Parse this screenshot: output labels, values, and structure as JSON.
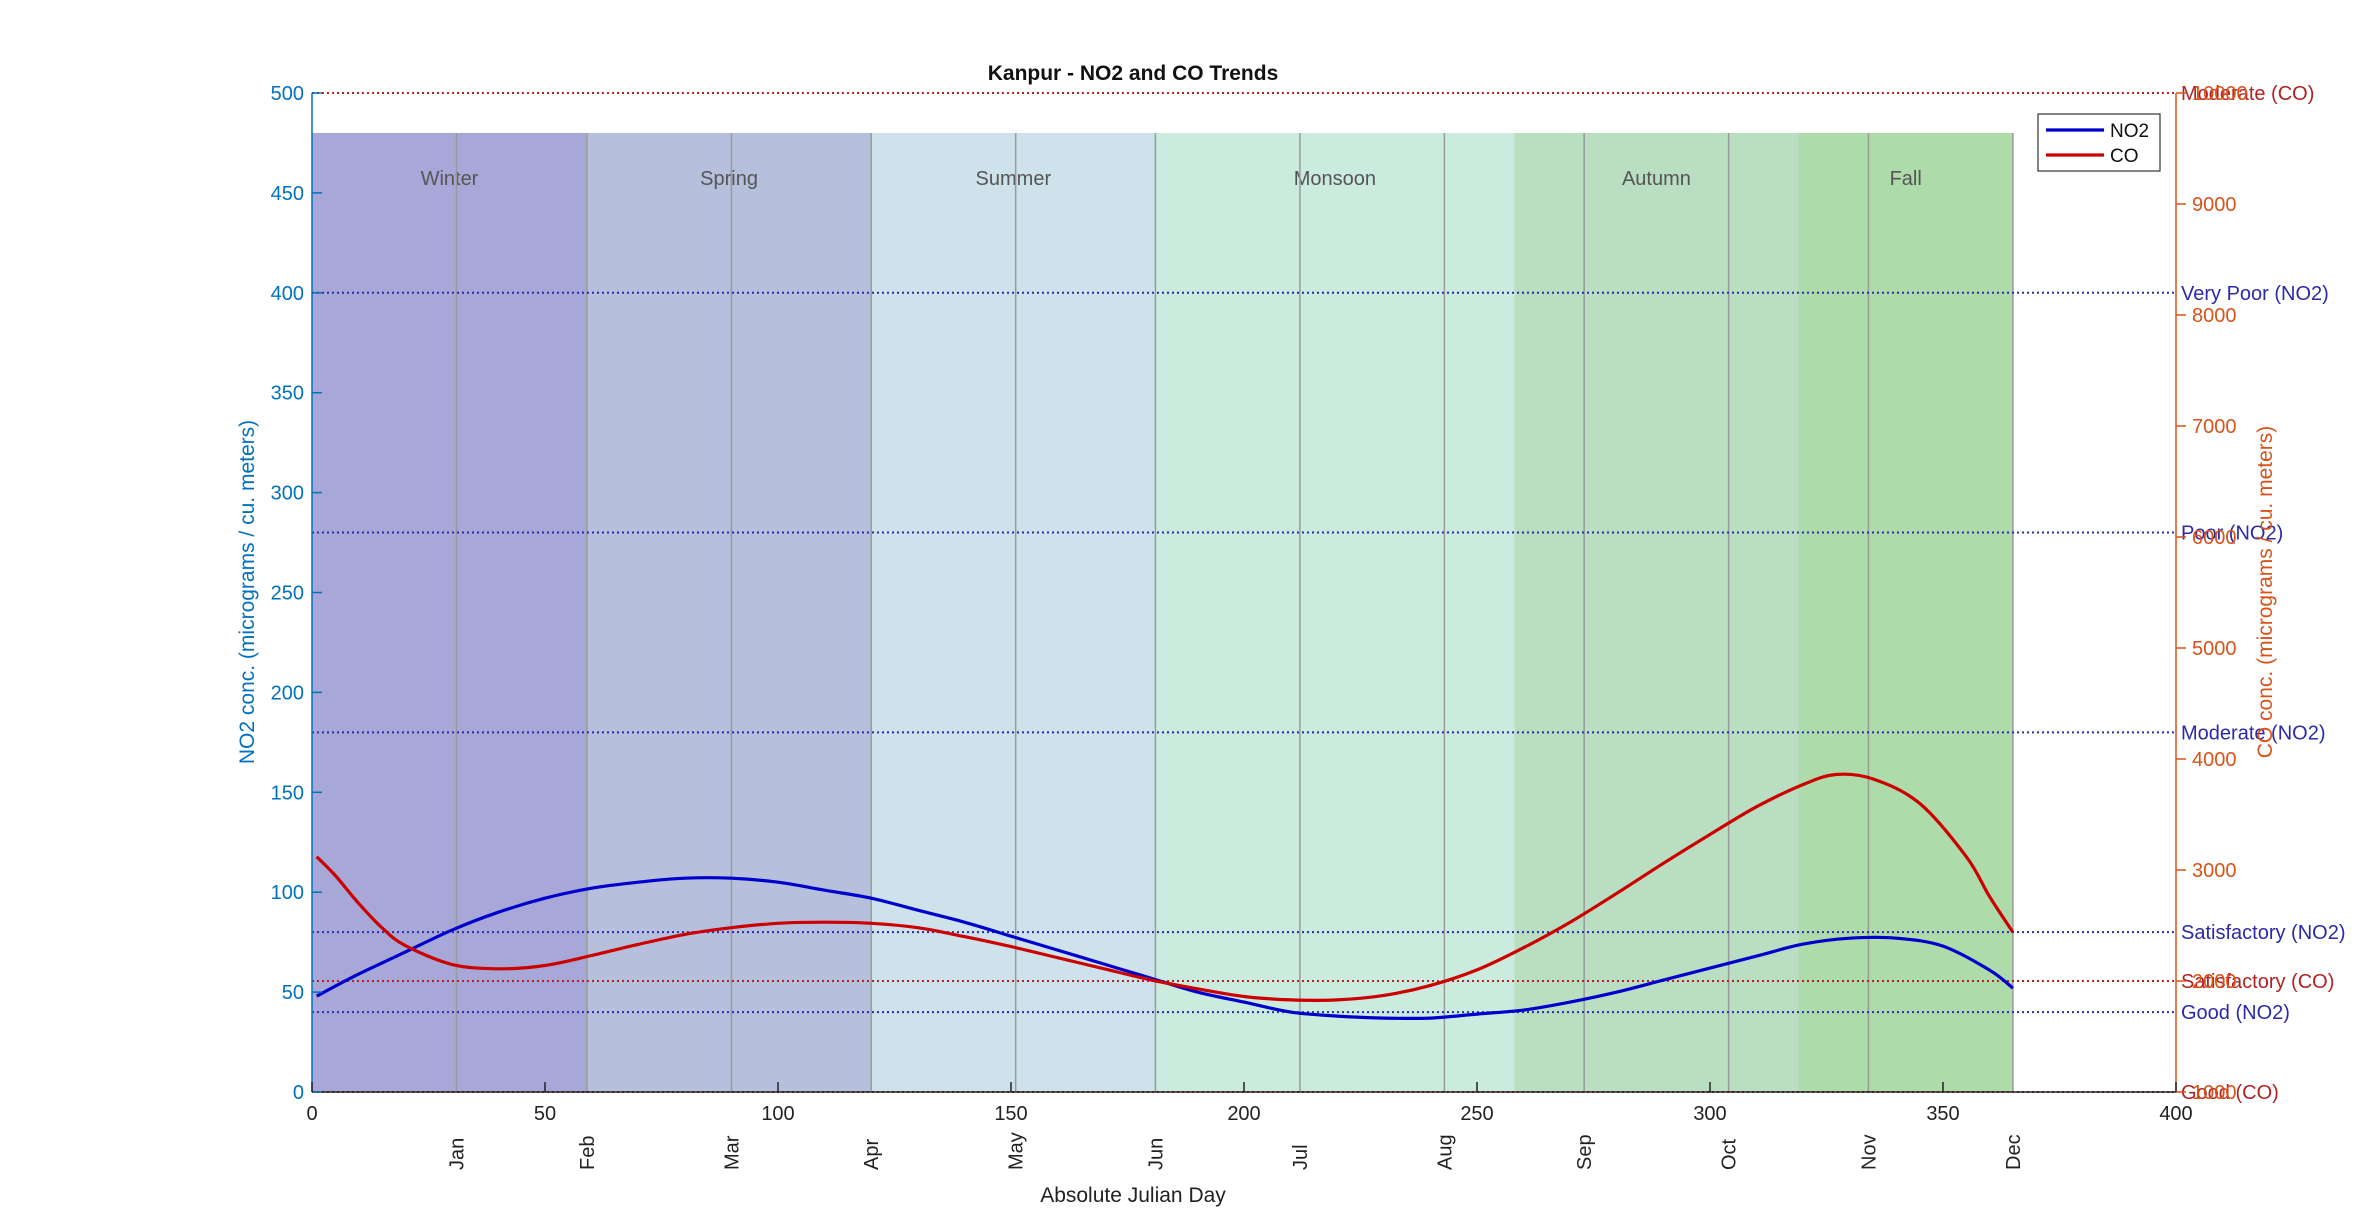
{
  "chart_data": {
    "type": "line",
    "title": "Kanpur - NO2 and CO Trends",
    "xlabel": "Absolute Julian Day",
    "ylabel_left": "NO2 conc. (micrograms / cu. meters)",
    "ylabel_right": "CO conc. (micrograms / cu. meters)",
    "xlim": [
      0,
      400
    ],
    "ylim_left": [
      0,
      500
    ],
    "ylim_right": [
      1000,
      10000
    ],
    "x_ticks": [
      0,
      50,
      100,
      150,
      200,
      250,
      300,
      350,
      400
    ],
    "y_left_ticks": [
      0,
      50,
      100,
      150,
      200,
      250,
      300,
      350,
      400,
      450,
      500
    ],
    "y_right_ticks": [
      1000,
      2000,
      3000,
      4000,
      5000,
      6000,
      7000,
      8000,
      9000,
      10000
    ],
    "month_ticks": [
      {
        "label": "Jan",
        "x": 31
      },
      {
        "label": "Feb",
        "x": 59
      },
      {
        "label": "Mar",
        "x": 90
      },
      {
        "label": "Apr",
        "x": 120
      },
      {
        "label": "May",
        "x": 151
      },
      {
        "label": "Jun",
        "x": 181
      },
      {
        "label": "Jul",
        "x": 212
      },
      {
        "label": "Aug",
        "x": 243
      },
      {
        "label": "Sep",
        "x": 273
      },
      {
        "label": "Oct",
        "x": 304
      },
      {
        "label": "Nov",
        "x": 334
      },
      {
        "label": "Dec",
        "x": 365
      }
    ],
    "seasons": [
      {
        "name": "Winter",
        "start": 0,
        "end": 59,
        "color": "#a8a8d8"
      },
      {
        "name": "Spring",
        "start": 59,
        "end": 120,
        "color": "#b6c0dc"
      },
      {
        "name": "Summer",
        "start": 120,
        "end": 181,
        "color": "#cde2ea"
      },
      {
        "name": "Monsoon",
        "start": 181,
        "end": 258,
        "color": "#cbebdf"
      },
      {
        "name": "Autumn",
        "start": 258,
        "end": 319,
        "color": "#b9dec2"
      },
      {
        "name": "Fall",
        "start": 319,
        "end": 365,
        "color": "#addcaa"
      }
    ],
    "season_top_value": 480,
    "series": [
      {
        "name": "NO2",
        "axis": "left",
        "color": "#0000cc",
        "x": [
          1,
          10,
          20,
          30,
          40,
          50,
          60,
          70,
          80,
          90,
          100,
          110,
          120,
          130,
          140,
          150,
          160,
          170,
          180,
          190,
          200,
          210,
          220,
          230,
          240,
          250,
          260,
          270,
          280,
          290,
          300,
          310,
          320,
          330,
          340,
          350,
          360,
          365
        ],
        "values": [
          48,
          59,
          70,
          81,
          90,
          97,
          102,
          105,
          107,
          107,
          105,
          101,
          97,
          91,
          85,
          78,
          71,
          64,
          57,
          50,
          45,
          40,
          38,
          37,
          37,
          39,
          41,
          45,
          50,
          56,
          62,
          68,
          74,
          77,
          77,
          73,
          61,
          52
        ]
      },
      {
        "name": "CO",
        "axis": "right",
        "color": "#cc0000",
        "x": [
          1,
          5,
          10,
          15,
          20,
          30,
          40,
          50,
          60,
          70,
          80,
          90,
          100,
          110,
          120,
          130,
          140,
          150,
          160,
          170,
          180,
          190,
          200,
          210,
          220,
          230,
          240,
          250,
          260,
          270,
          280,
          290,
          300,
          310,
          320,
          327,
          335,
          345,
          355,
          360,
          365
        ],
        "values": [
          3120,
          2950,
          2700,
          2480,
          2320,
          2150,
          2110,
          2140,
          2230,
          2330,
          2420,
          2480,
          2520,
          2530,
          2520,
          2480,
          2400,
          2310,
          2210,
          2110,
          2010,
          1930,
          1860,
          1830,
          1830,
          1870,
          1960,
          2100,
          2300,
          2530,
          2790,
          3060,
          3320,
          3570,
          3770,
          3860,
          3820,
          3600,
          3120,
          2760,
          2440
        ]
      }
    ],
    "thresholds": [
      {
        "label": "Good (NO2)",
        "axis": "left",
        "value": 40,
        "color": "#2a2aaa"
      },
      {
        "label": "Satisfactory (NO2)",
        "axis": "left",
        "value": 80,
        "color": "#2a2aaa"
      },
      {
        "label": "Moderate (NO2)",
        "axis": "left",
        "value": 180,
        "color": "#2a2aaa"
      },
      {
        "label": "Poor (NO2)",
        "axis": "left",
        "value": 280,
        "color": "#2a2aaa"
      },
      {
        "label": "Very Poor (NO2)",
        "axis": "left",
        "value": 400,
        "color": "#2a2aaa"
      },
      {
        "label": "Good (CO)",
        "axis": "right",
        "value": 1000,
        "color": "#b22222"
      },
      {
        "label": "Satisfactory (CO)",
        "axis": "right",
        "value": 2000,
        "color": "#b22222"
      },
      {
        "label": "Moderate (CO)",
        "axis": "right",
        "value": 10000,
        "color": "#b22222"
      }
    ],
    "legend": {
      "position": "top-right",
      "entries": [
        "NO2",
        "CO"
      ]
    },
    "colors": {
      "left_axis": "#0072bd",
      "right_axis": "#d95319",
      "month_line": "#9a9a9a",
      "text": "#222222",
      "season_label": "#555555"
    },
    "grid": false
  }
}
